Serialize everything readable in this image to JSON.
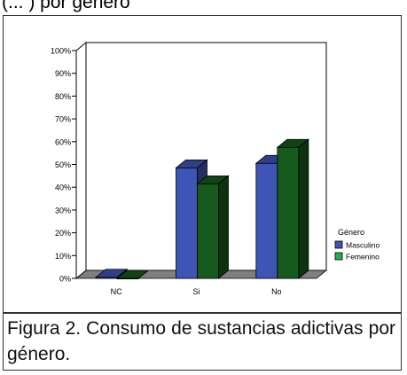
{
  "header_snippet": "(... ) por género",
  "caption": "Figura 2. Consumo de sustancias adictivas por género.",
  "chart_data": {
    "type": "bar",
    "subtype": "3d-clustered",
    "categories": [
      "NC",
      "Si",
      "No"
    ],
    "series": [
      {
        "name": "Masculino",
        "values": [
          0.5,
          48.5,
          50.5
        ],
        "color": "#3f55b5"
      },
      {
        "name": "Femenino",
        "values": [
          0,
          41.5,
          57.5
        ],
        "color": "#165a1c"
      }
    ],
    "yticks": [
      "0%",
      "10%",
      "20%",
      "30%",
      "40%",
      "50%",
      "60%",
      "70%",
      "80%",
      "90%",
      "100%"
    ],
    "ylim": [
      0,
      100
    ],
    "legend_title": "Género",
    "legend_position": "right",
    "grid": false
  }
}
